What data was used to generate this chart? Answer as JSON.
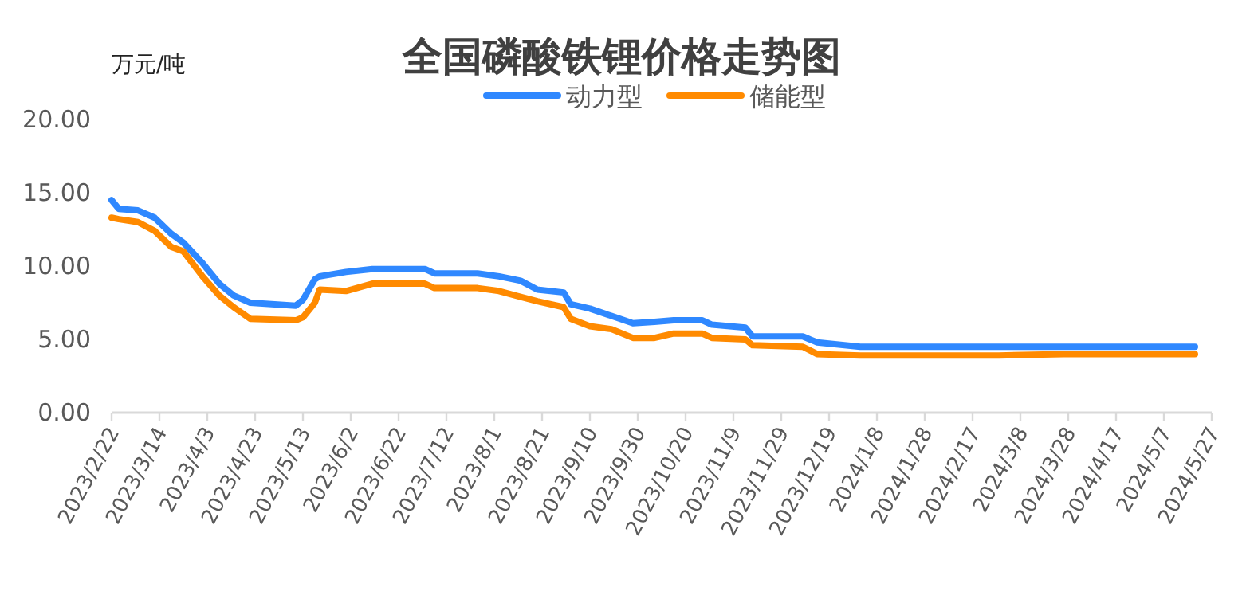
{
  "chart_data": {
    "type": "line",
    "title": "全国磷酸铁锂价格走势图",
    "ylabel": "万元/吨",
    "legend": "top",
    "grid": false,
    "marker": "none",
    "line_style": "solid",
    "xlim": [
      "2023-02-22",
      "2024-05-27"
    ],
    "xticks": [
      {
        "value": "2023-02-22",
        "label": "2023/2/22"
      },
      {
        "value": "2023-03-14",
        "label": "2023/3/14"
      },
      {
        "value": "2023-04-03",
        "label": "2023/4/3"
      },
      {
        "value": "2023-04-23",
        "label": "2023/4/23"
      },
      {
        "value": "2023-05-13",
        "label": "2023/5/13"
      },
      {
        "value": "2023-06-02",
        "label": "2023/6/2"
      },
      {
        "value": "2023-06-22",
        "label": "2023/6/22"
      },
      {
        "value": "2023-07-12",
        "label": "2023/7/12"
      },
      {
        "value": "2023-08-01",
        "label": "2023/8/1"
      },
      {
        "value": "2023-08-21",
        "label": "2023/8/21"
      },
      {
        "value": "2023-09-10",
        "label": "2023/9/10"
      },
      {
        "value": "2023-09-30",
        "label": "2023/9/30"
      },
      {
        "value": "2023-10-20",
        "label": "2023/10/20"
      },
      {
        "value": "2023-11-09",
        "label": "2023/11/9"
      },
      {
        "value": "2023-11-29",
        "label": "2023/11/29"
      },
      {
        "value": "2023-12-19",
        "label": "2023/12/19"
      },
      {
        "value": "2024-01-08",
        "label": "2024/1/8"
      },
      {
        "value": "2024-01-28",
        "label": "2024/1/28"
      },
      {
        "value": "2024-02-17",
        "label": "2024/2/17"
      },
      {
        "value": "2024-03-08",
        "label": "2024/3/8"
      },
      {
        "value": "2024-03-28",
        "label": "2024/3/28"
      },
      {
        "value": "2024-04-17",
        "label": "2024/4/17"
      },
      {
        "value": "2024-05-07",
        "label": "2024/5/7"
      },
      {
        "value": "2024-05-27",
        "label": "2024/5/27"
      }
    ],
    "ylim": [
      0,
      20
    ],
    "yticks": [
      {
        "value": 0,
        "label": "0.00"
      },
      {
        "value": 5,
        "label": "5.00"
      },
      {
        "value": 10,
        "label": "10.00"
      },
      {
        "value": 15,
        "label": "15.00"
      },
      {
        "value": 20,
        "label": "20.00"
      }
    ],
    "x": [
      "2023-02-22",
      "2023-02-25",
      "2023-03-05",
      "2023-03-12",
      "2023-03-19",
      "2023-03-24",
      "2023-04-01",
      "2023-04-08",
      "2023-04-14",
      "2023-04-21",
      "2023-05-10",
      "2023-05-13",
      "2023-05-18",
      "2023-05-20",
      "2023-05-31",
      "2023-06-11",
      "2023-07-03",
      "2023-07-07",
      "2023-07-25",
      "2023-08-03",
      "2023-08-12",
      "2023-08-19",
      "2023-08-30",
      "2023-09-02",
      "2023-09-10",
      "2023-09-19",
      "2023-09-28",
      "2023-10-07",
      "2023-10-15",
      "2023-10-27",
      "2023-10-31",
      "2023-11-14",
      "2023-11-17",
      "2023-12-08",
      "2023-12-14",
      "2024-01-01",
      "2024-02-28",
      "2024-03-26",
      "2024-05-20"
    ],
    "series": [
      {
        "name": "动力型",
        "color": "#2f88ff",
        "values": [
          14.5,
          13.9,
          13.8,
          13.3,
          12.2,
          11.6,
          10.2,
          8.8,
          8.0,
          7.5,
          7.3,
          7.7,
          9.1,
          9.3,
          9.6,
          9.8,
          9.8,
          9.5,
          9.5,
          9.3,
          9.0,
          8.4,
          8.2,
          7.4,
          7.1,
          6.6,
          6.1,
          6.2,
          6.3,
          6.3,
          6.0,
          5.8,
          5.2,
          5.2,
          4.8,
          4.5,
          4.5,
          4.5,
          4.5
        ]
      },
      {
        "name": "储能型",
        "color": "#ff8a00",
        "values": [
          13.3,
          13.2,
          13.0,
          12.4,
          11.3,
          11.0,
          9.3,
          8.0,
          7.2,
          6.4,
          6.3,
          6.5,
          7.5,
          8.4,
          8.3,
          8.8,
          8.8,
          8.5,
          8.5,
          8.3,
          7.9,
          7.6,
          7.2,
          6.4,
          5.9,
          5.7,
          5.1,
          5.1,
          5.4,
          5.4,
          5.1,
          5.0,
          4.6,
          4.5,
          4.0,
          3.9,
          3.9,
          4.0,
          4.0
        ]
      }
    ]
  }
}
